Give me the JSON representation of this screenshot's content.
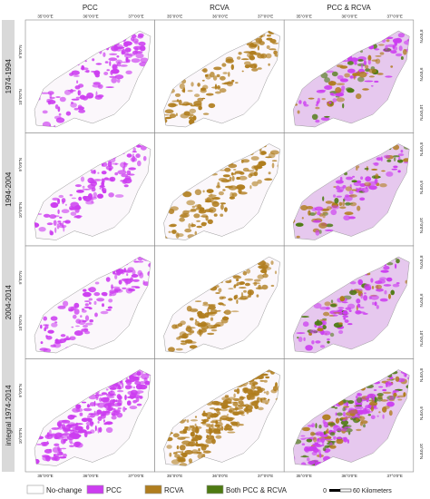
{
  "columns": [
    "PCC",
    "RCVA",
    "PCC & RCVA"
  ],
  "rows": [
    {
      "label": "1974-1994",
      "lat_left": [
        "9°0'0\"N",
        "10°0'0\"N"
      ],
      "lat_right": [
        "8°0'0\"N",
        "9°0'0\"N",
        "10°0'0\"N"
      ]
    },
    {
      "label": "1994-2004",
      "lat_left": [
        "9°0'0\"N",
        "10°0'0\"N"
      ],
      "lat_right": [
        "8°0'0\"N",
        "9°0'0\"N",
        "10°0'0\"N"
      ]
    },
    {
      "label": "2004-2014",
      "lat_left": [
        "9°0'0\"N",
        "10°0'0\"N"
      ],
      "lat_right": [
        "8°0'0\"N",
        "9°0'0\"N",
        "10°0'0\"N"
      ]
    },
    {
      "label": "integral 1974-2014",
      "lat_left": [
        "9°0'0\"N",
        "10°0'0\"N"
      ],
      "lat_right": [
        "8°0'0\"N",
        "9°0'0\"N",
        "10°0'0\"N"
      ]
    }
  ],
  "lon_ticks": [
    "35°0'0\"E",
    "36°0'0\"E",
    "37°0'0\"E"
  ],
  "legend": [
    "No-change",
    "PCC",
    "RCVA",
    "Both PCC & RCVA"
  ],
  "scale": [
    "0",
    "60 Kilometers"
  ]
}
